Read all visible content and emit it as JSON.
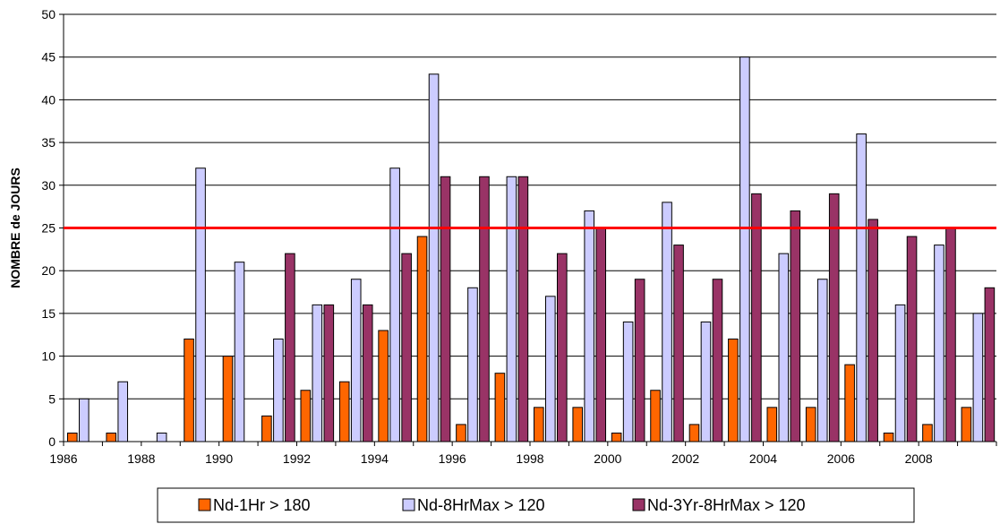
{
  "chart_data": {
    "type": "bar",
    "title": "",
    "xlabel": "",
    "ylabel": "NOMBRE de JOURS",
    "ylim": [
      0,
      50
    ],
    "yticks": [
      0,
      5,
      10,
      15,
      20,
      25,
      30,
      35,
      40,
      45,
      50
    ],
    "grid": "horizontal",
    "legend_position": "bottom",
    "categories": [
      "1986",
      "1987",
      "1988",
      "1989",
      "1990",
      "1991",
      "1992",
      "1993",
      "1994",
      "1995",
      "1996",
      "1997",
      "1998",
      "1999",
      "2000",
      "2001",
      "2002",
      "2003",
      "2004",
      "2005",
      "2006",
      "2007",
      "2008",
      "2009"
    ],
    "xtick_labels": [
      "1986",
      "",
      "1988",
      "",
      "1990",
      "",
      "1992",
      "",
      "1994",
      "",
      "1996",
      "",
      "1998",
      "",
      "2000",
      "",
      "2002",
      "",
      "2004",
      "",
      "2006",
      "",
      "2008",
      ""
    ],
    "series": [
      {
        "name": "Nd-1Hr > 180",
        "color": "#FF6600",
        "values": [
          1,
          1,
          0,
          12,
          10,
          3,
          6,
          7,
          13,
          24,
          2,
          8,
          4,
          4,
          1,
          6,
          2,
          12,
          4,
          4,
          9,
          1,
          2,
          4
        ]
      },
      {
        "name": "Nd-8HrMax > 120",
        "color": "#CCCCFF",
        "values": [
          5,
          7,
          1,
          32,
          21,
          12,
          16,
          19,
          32,
          43,
          18,
          31,
          17,
          27,
          14,
          28,
          14,
          45,
          22,
          19,
          36,
          16,
          23,
          15
        ]
      },
      {
        "name": "Nd-3Yr-8HrMax > 120",
        "color": "#993366",
        "values": [
          null,
          null,
          null,
          null,
          null,
          22,
          16,
          16,
          22,
          31,
          31,
          31,
          22,
          25,
          19,
          23,
          19,
          29,
          27,
          29,
          26,
          24,
          25,
          18
        ]
      }
    ],
    "reference_line": {
      "value": 25,
      "color": "#FF0000"
    }
  }
}
